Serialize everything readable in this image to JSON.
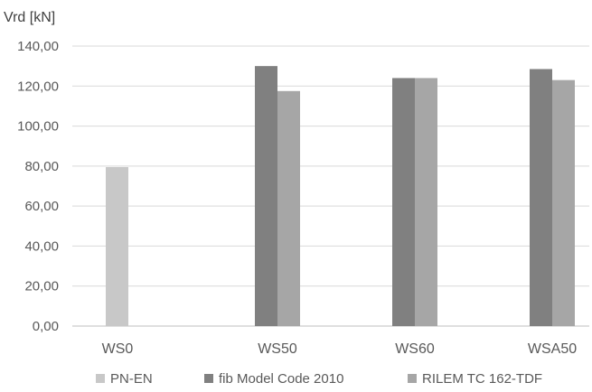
{
  "chart_data": {
    "type": "bar",
    "title": "",
    "ylabel": "Vrd [kN]",
    "xlabel": "",
    "ylim": [
      0,
      140
    ],
    "ytick_step": 20,
    "ytick_labels": [
      "0,00",
      "20,00",
      "40,00",
      "60,00",
      "80,00",
      "100,00",
      "120,00",
      "140,00"
    ],
    "categories": [
      "WS0",
      "WS50",
      "WS60",
      "WSA50"
    ],
    "series": [
      {
        "name": "PN-EN",
        "color": "#c8c8c8",
        "values": [
          79.5,
          null,
          null,
          null
        ]
      },
      {
        "name": "fib Model Code 2010",
        "color": "#808080",
        "values": [
          null,
          130,
          124,
          128.5
        ]
      },
      {
        "name": "RILEM TC 162-TDF",
        "color": "#a6a6a6",
        "values": [
          null,
          117.5,
          124,
          123
        ]
      }
    ],
    "grid": true,
    "legend": "bottom"
  }
}
